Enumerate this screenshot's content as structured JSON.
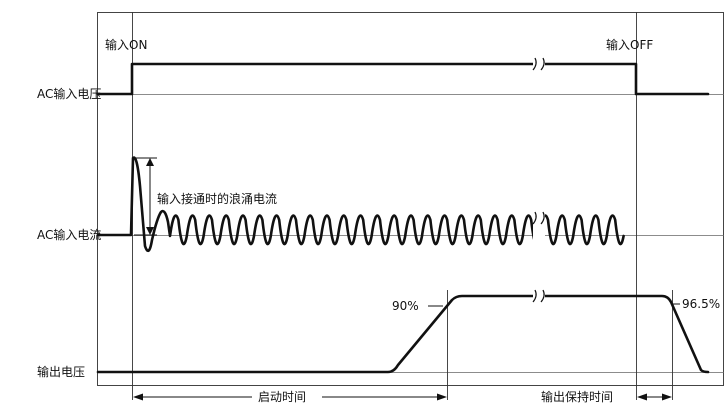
{
  "rows": {
    "ac_input_voltage": "AC输入电压",
    "ac_input_current": "AC输入电流",
    "output_voltage": "输出电压"
  },
  "events": {
    "input_on": "输入ON",
    "input_off": "输入OFF"
  },
  "annotations": {
    "inrush_current": "输入接通时的浪涌电流",
    "rise_percent": "90%",
    "hold_percent": "96.5%"
  },
  "durations": {
    "startup_time": "启动时间",
    "hold_up_time": "输出保持时间"
  }
}
